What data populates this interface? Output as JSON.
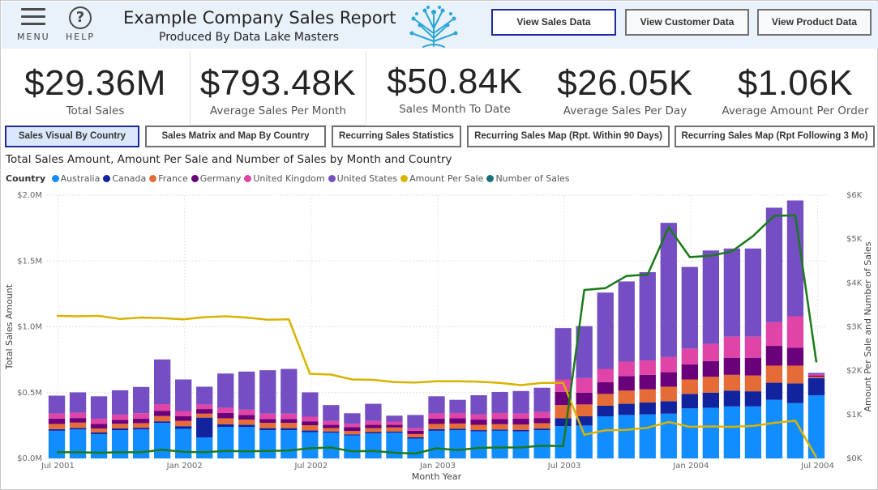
{
  "header": {
    "menu_label": "MENU",
    "help_label": "HELP",
    "help_glyph": "?",
    "title": "Example Company Sales Report",
    "subtitle": "Produced By Data Lake Masters",
    "nav": [
      {
        "label": "View Sales Data",
        "active": true
      },
      {
        "label": "View Customer Data",
        "active": false
      },
      {
        "label": "View Product Data",
        "active": false
      }
    ]
  },
  "kpis": [
    {
      "value": "$29.36M",
      "label": "Total Sales"
    },
    {
      "value": "$793.48K",
      "label": "Average Sales Per Month"
    },
    {
      "value": "$50.84K",
      "label": "Sales Month To Date"
    },
    {
      "value": "$26.05K",
      "label": "Average Sales Per Day"
    },
    {
      "value": "$1.06K",
      "label": "Average Amount Per Order"
    }
  ],
  "tabs": [
    {
      "label": "Sales Visual By Country",
      "active": true
    },
    {
      "label": "Sales Matrix and Map By Country",
      "active": false
    },
    {
      "label": "Recurring Sales Statistics",
      "active": false
    },
    {
      "label": "Recurring Sales Map (Rpt. Within 90 Days)",
      "active": false
    },
    {
      "label": "Recurring Sales Map (Rpt Following 3 Mo)",
      "active": false
    }
  ],
  "colors": {
    "Australia": "#118dff",
    "Canada": "#12239e",
    "France": "#e66c37",
    "Germany": "#6b007b",
    "United Kingdom": "#e044a7",
    "United States": "#744ec2",
    "Amount Per Sale": "#d9b300",
    "Number of Sales": "#197278",
    "header_bg": "#e9f1fb",
    "active_border": "#1f2a9c"
  },
  "icons": [
    "hamburger-menu-icon",
    "help-icon",
    "data-lake-tree-logo"
  ],
  "chart_data": {
    "type": "bar",
    "title": "Total Sales Amount, Amount Per Sale and Number of Sales by Month and Country",
    "legend_title": "Country",
    "legend": [
      "Australia",
      "Canada",
      "France",
      "Germany",
      "United Kingdom",
      "United States",
      "Amount Per Sale",
      "Number of Sales"
    ],
    "legend_position": "top-left",
    "xlabel": "Month Year",
    "ylabel": "Total Sales Amount",
    "y2label": "Amount Per Sale and Number of Sales",
    "ylim": [
      0,
      2000000
    ],
    "y2lim": [
      0,
      6000
    ],
    "y_ticks": [
      "$0.0M",
      "$0.5M",
      "$1.0M",
      "$1.5M",
      "$2.0M"
    ],
    "y2_ticks": [
      "$0K",
      "$1K",
      "$2K",
      "$3K",
      "$4K",
      "$5K",
      "$6K"
    ],
    "x_ticks": [
      "Jul 2001",
      "Jan 2002",
      "Jul 2002",
      "Jan 2003",
      "Jul 2003",
      "Jan 2004",
      "Jul 2004"
    ],
    "grid": true,
    "categories": [
      "2001-07",
      "2001-08",
      "2001-09",
      "2001-10",
      "2001-11",
      "2001-12",
      "2002-01",
      "2002-02",
      "2002-03",
      "2002-04",
      "2002-05",
      "2002-06",
      "2002-07",
      "2002-08",
      "2002-09",
      "2002-10",
      "2002-11",
      "2002-12",
      "2003-01",
      "2003-02",
      "2003-03",
      "2003-04",
      "2003-05",
      "2003-06",
      "2003-07",
      "2003-08",
      "2003-09",
      "2003-10",
      "2003-11",
      "2003-12",
      "2004-01",
      "2004-02",
      "2004-03",
      "2004-04",
      "2004-05",
      "2004-06",
      "2004-07"
    ],
    "series": [
      {
        "name": "Australia",
        "stack": true,
        "values": [
          210000,
          220000,
          185000,
          215000,
          220000,
          270000,
          225000,
          160000,
          240000,
          240000,
          215000,
          215000,
          200000,
          195000,
          175000,
          190000,
          195000,
          150000,
          210000,
          215000,
          205000,
          210000,
          205000,
          215000,
          245000,
          250000,
          320000,
          330000,
          335000,
          340000,
          380000,
          385000,
          395000,
          395000,
          445000,
          420000,
          480000
        ]
      },
      {
        "name": "Canada",
        "stack": true,
        "values": [
          12000,
          12000,
          12000,
          13000,
          13000,
          12000,
          20000,
          150000,
          20000,
          15000,
          15000,
          15000,
          12000,
          10000,
          8000,
          10000,
          10000,
          10000,
          12000,
          10000,
          10000,
          10000,
          12000,
          12000,
          60000,
          70000,
          80000,
          85000,
          90000,
          95000,
          110000,
          115000,
          120000,
          115000,
          130000,
          150000,
          130000
        ]
      },
      {
        "name": "France",
        "stack": true,
        "values": [
          40000,
          40000,
          30000,
          35000,
          35000,
          40000,
          40000,
          30000,
          45000,
          40000,
          40000,
          40000,
          40000,
          25000,
          25000,
          30000,
          30000,
          25000,
          40000,
          40000,
          40000,
          40000,
          40000,
          40000,
          100000,
          90000,
          90000,
          100000,
          100000,
          110000,
          110000,
          120000,
          120000,
          120000,
          130000,
          135000,
          10000
        ]
      },
      {
        "name": "Germany",
        "stack": true,
        "values": [
          40000,
          35000,
          35000,
          30000,
          35000,
          40000,
          35000,
          35000,
          40000,
          35000,
          30000,
          30000,
          30000,
          25000,
          30000,
          25000,
          20000,
          25000,
          40000,
          40000,
          40000,
          40000,
          45000,
          40000,
          100000,
          90000,
          90000,
          110000,
          110000,
          110000,
          115000,
          120000,
          130000,
          135000,
          150000,
          135000,
          10000
        ]
      },
      {
        "name": "United Kingdom",
        "stack": true,
        "values": [
          40000,
          40000,
          40000,
          40000,
          40000,
          50000,
          40000,
          35000,
          40000,
          40000,
          40000,
          40000,
          35000,
          30000,
          25000,
          30000,
          25000,
          20000,
          40000,
          40000,
          40000,
          45000,
          40000,
          45000,
          95000,
          110000,
          100000,
          110000,
          110000,
          115000,
          120000,
          130000,
          160000,
          160000,
          180000,
          240000,
          10000
        ]
      },
      {
        "name": "United States",
        "stack": true,
        "values": [
          135000,
          155000,
          170000,
          185000,
          200000,
          340000,
          240000,
          135000,
          260000,
          290000,
          330000,
          340000,
          185000,
          120000,
          80000,
          130000,
          45000,
          100000,
          130000,
          100000,
          145000,
          160000,
          170000,
          185000,
          390000,
          395000,
          580000,
          610000,
          670000,
          1020000,
          620000,
          710000,
          670000,
          670000,
          870000,
          880000,
          10000
        ]
      },
      {
        "name": "Amount Per Sale",
        "axis": "y2",
        "values": [
          3250,
          3240,
          3250,
          3180,
          3210,
          3200,
          3170,
          3220,
          3240,
          3210,
          3160,
          3170,
          1930,
          1910,
          1800,
          1790,
          1740,
          1730,
          1760,
          1760,
          1750,
          1720,
          1670,
          1720,
          1720,
          540,
          640,
          650,
          700,
          830,
          720,
          730,
          720,
          740,
          810,
          860,
          20
        ]
      },
      {
        "name": "Number of Sales",
        "axis": "y2",
        "values": [
          140,
          140,
          130,
          140,
          140,
          200,
          150,
          140,
          170,
          160,
          170,
          180,
          230,
          250,
          160,
          170,
          130,
          110,
          230,
          190,
          240,
          250,
          250,
          290,
          280,
          3840,
          3880,
          4160,
          4190,
          5270,
          4590,
          4620,
          4720,
          5070,
          5530,
          5540,
          2190
        ]
      }
    ]
  }
}
